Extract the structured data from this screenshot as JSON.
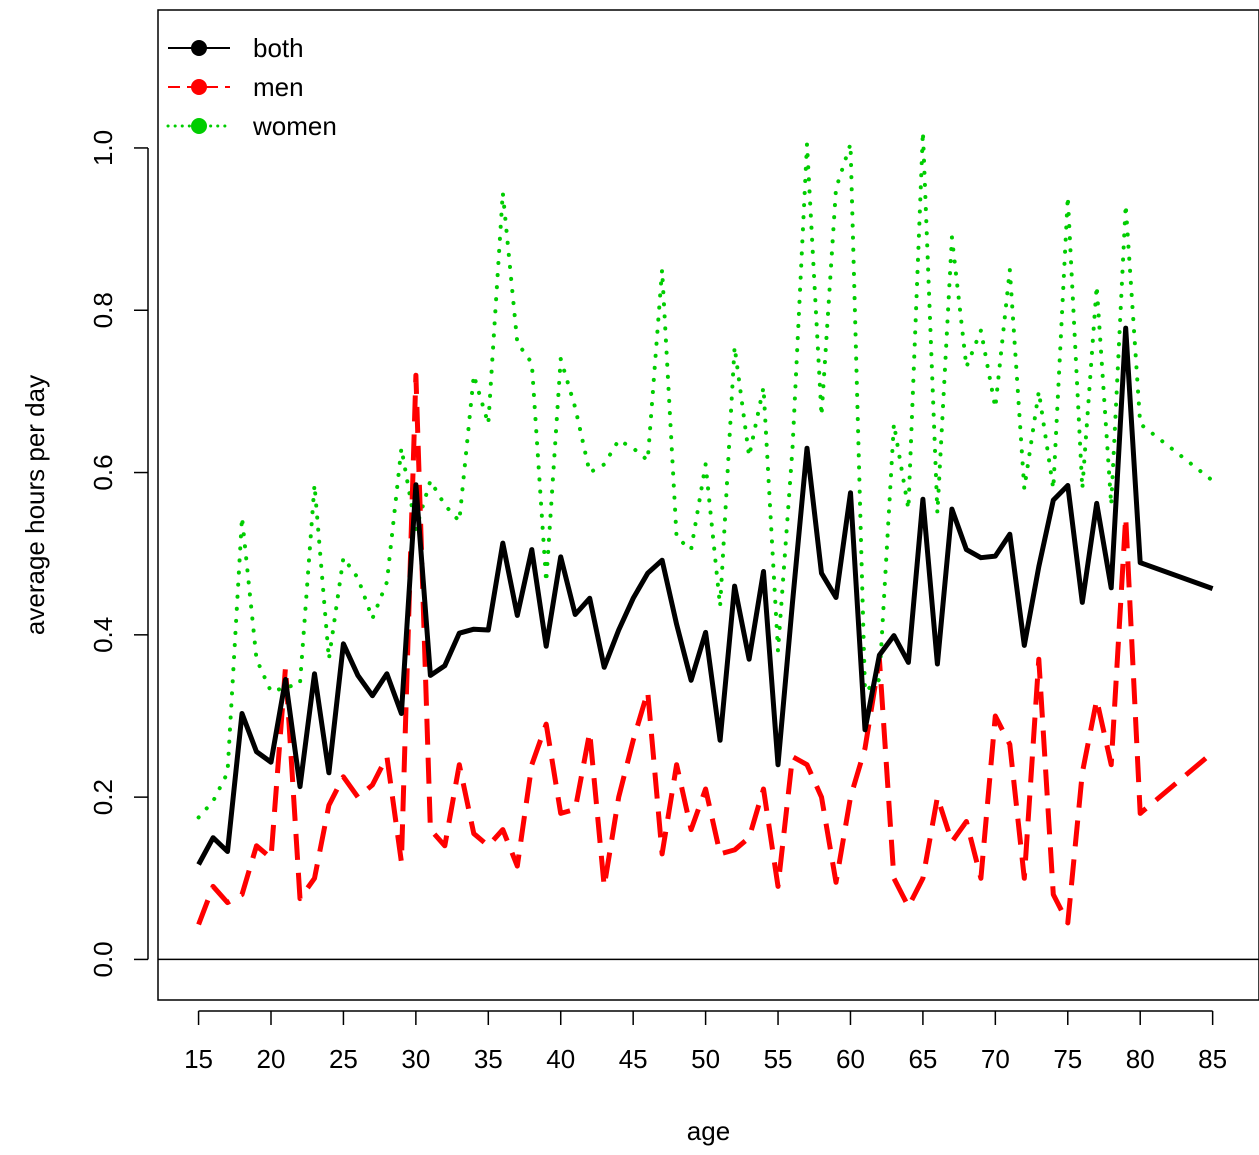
{
  "chart_data": {
    "type": "line",
    "title": "",
    "xlabel": "age",
    "ylabel": "average hours per day",
    "xlim": [
      12.2,
      88.2
    ],
    "ylim": [
      -0.05,
      1.17
    ],
    "x_ticks": [
      15,
      20,
      25,
      30,
      35,
      40,
      45,
      50,
      55,
      60,
      65,
      70,
      75,
      80,
      85
    ],
    "x_tick_labels": [
      "15",
      "20",
      "25",
      "30",
      "35",
      "40",
      "45",
      "50",
      "55",
      "60",
      "65",
      "70",
      "75",
      "80",
      "85"
    ],
    "y_ticks": [
      0,
      0.2,
      0.4,
      0.6,
      0.8,
      1.0
    ],
    "y_tick_labels": [
      "0.0",
      "0.2",
      "0.4",
      "0.6",
      "0.8",
      "1.0"
    ],
    "reference_line_y": 0,
    "grid": false,
    "legend": {
      "position": "top-left",
      "entries": [
        {
          "label": "both",
          "color": "#000000",
          "style": "solid"
        },
        {
          "label": "men",
          "color": "#ff0000",
          "style": "dashed"
        },
        {
          "label": "women",
          "color": "#00cd00",
          "style": "dotted"
        }
      ]
    },
    "x": [
      15,
      16,
      17,
      18,
      19,
      20,
      21,
      22,
      23,
      24,
      25,
      26,
      27,
      28,
      29,
      30,
      31,
      32,
      33,
      34,
      35,
      36,
      37,
      38,
      39,
      40,
      41,
      42,
      43,
      44,
      45,
      46,
      47,
      48,
      49,
      50,
      51,
      52,
      53,
      54,
      55,
      56,
      57,
      58,
      59,
      60,
      61,
      62,
      63,
      64,
      65,
      66,
      67,
      68,
      69,
      70,
      71,
      72,
      73,
      74,
      75,
      76,
      77,
      78,
      79,
      80,
      85
    ],
    "series": [
      {
        "name": "both",
        "color": "#000000",
        "style": "solid",
        "values": [
          0.117,
          0.15,
          0.133,
          0.303,
          0.256,
          0.243,
          0.345,
          0.213,
          0.352,
          0.23,
          0.389,
          0.35,
          0.325,
          0.352,
          0.303,
          0.585,
          0.35,
          0.362,
          0.402,
          0.407,
          0.406,
          0.513,
          0.424,
          0.505,
          0.386,
          0.496,
          0.425,
          0.445,
          0.36,
          0.406,
          0.445,
          0.476,
          0.492,
          0.413,
          0.344,
          0.403,
          0.27,
          0.46,
          0.37,
          0.478,
          0.24,
          0.44,
          0.63,
          0.476,
          0.446,
          0.575,
          0.283,
          0.375,
          0.399,
          0.366,
          0.567,
          0.364,
          0.555,
          0.505,
          0.495,
          0.497,
          0.524,
          0.387,
          0.484,
          0.566,
          0.584,
          0.44,
          0.562,
          0.458,
          0.778,
          0.489,
          0.457
        ]
      },
      {
        "name": "men",
        "color": "#ff0000",
        "style": "dashed",
        "values": [
          0.043,
          0.09,
          0.07,
          0.08,
          0.14,
          0.125,
          0.36,
          0.075,
          0.1,
          0.19,
          0.225,
          0.2,
          0.215,
          0.25,
          0.12,
          0.72,
          0.16,
          0.14,
          0.24,
          0.155,
          0.14,
          0.16,
          0.115,
          0.24,
          0.29,
          0.18,
          0.185,
          0.28,
          0.09,
          0.2,
          0.27,
          0.33,
          0.13,
          0.24,
          0.16,
          0.21,
          0.13,
          0.135,
          0.15,
          0.21,
          0.09,
          0.25,
          0.24,
          0.2,
          0.095,
          0.2,
          0.26,
          0.37,
          0.1,
          0.065,
          0.1,
          0.2,
          0.145,
          0.17,
          0.1,
          0.3,
          0.265,
          0.1,
          0.37,
          0.08,
          0.045,
          0.23,
          0.32,
          0.24,
          0.545,
          0.18,
          0.255
        ]
      },
      {
        "name": "women",
        "color": "#00cd00",
        "style": "dotted",
        "values": [
          0.175,
          0.195,
          0.23,
          0.545,
          0.37,
          0.33,
          0.335,
          0.34,
          0.585,
          0.37,
          0.495,
          0.47,
          0.42,
          0.465,
          0.63,
          0.53,
          0.59,
          0.56,
          0.54,
          0.72,
          0.66,
          0.945,
          0.76,
          0.735,
          0.465,
          0.74,
          0.68,
          0.6,
          0.61,
          0.64,
          0.63,
          0.615,
          0.85,
          0.52,
          0.505,
          0.61,
          0.435,
          0.755,
          0.62,
          0.705,
          0.38,
          0.63,
          1.005,
          0.67,
          0.95,
          1.005,
          0.33,
          0.345,
          0.66,
          0.555,
          1.02,
          0.55,
          0.89,
          0.73,
          0.775,
          0.68,
          0.85,
          0.58,
          0.7,
          0.58,
          0.94,
          0.58,
          0.83,
          0.56,
          0.93,
          0.66,
          0.59
        ]
      }
    ]
  }
}
